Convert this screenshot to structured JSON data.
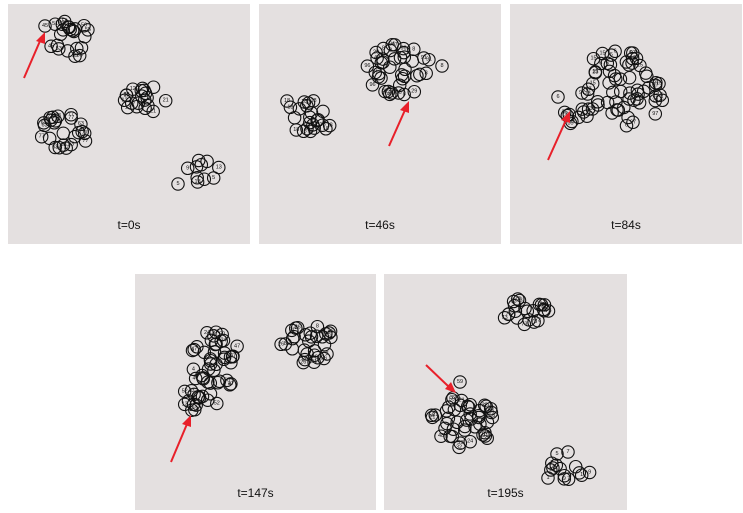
{
  "panels": [
    {
      "id": "p0",
      "time_label": "t=0s",
      "labeled_nodes": [
        "45",
        "51",
        "53",
        "55",
        "56",
        "77",
        "10",
        "35",
        "12",
        "21",
        "63",
        "9",
        "3",
        "5",
        "10",
        "13"
      ]
    },
    {
      "id": "p1",
      "time_label": "t=46s",
      "labeled_nodes": [
        "18",
        "91",
        "8",
        "29",
        "47",
        "96"
      ]
    },
    {
      "id": "p2",
      "time_label": "t=84s",
      "labeled_nodes": [
        "35",
        "97",
        "23",
        "15",
        "6"
      ]
    },
    {
      "id": "p3",
      "time_label": "t=147s",
      "labeled_nodes": [
        "50",
        "4",
        "24",
        "47",
        "91",
        "26",
        "8",
        "13",
        "52"
      ]
    },
    {
      "id": "p4",
      "time_label": "t=195s",
      "labeled_nodes": [
        "59",
        "48",
        "50",
        "58",
        "73",
        "24",
        "25",
        "32",
        "21",
        "9",
        "5",
        "7",
        "4",
        "1",
        "32"
      ]
    }
  ],
  "colors": {
    "panel_bg": "#e4e0e0",
    "node_stroke": "#111111",
    "arrow": "#e8202a"
  }
}
